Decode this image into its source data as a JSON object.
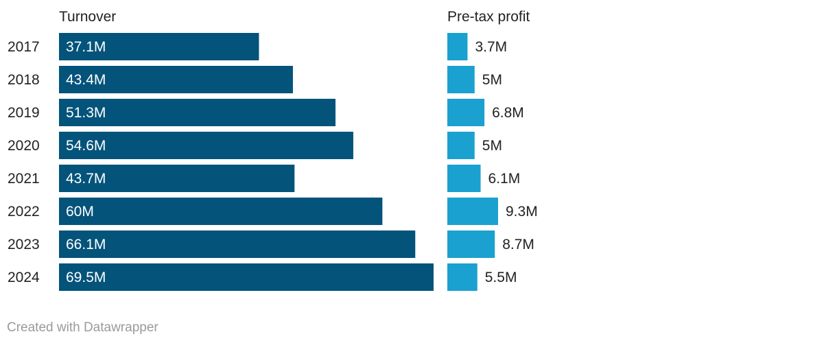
{
  "chart_data": {
    "type": "bar",
    "orientation": "horizontal",
    "categories": [
      "2017",
      "2018",
      "2019",
      "2020",
      "2021",
      "2022",
      "2023",
      "2024"
    ],
    "series": [
      {
        "name": "Turnover",
        "values": [
          37.1,
          43.4,
          51.3,
          54.6,
          43.7,
          60,
          66.1,
          69.5
        ],
        "labels": [
          "37.1M",
          "43.4M",
          "51.3M",
          "54.6M",
          "43.7M",
          "60M",
          "66.1M",
          "69.5M"
        ],
        "color": "#04537a",
        "label_position": "inside"
      },
      {
        "name": "Pre-tax profit",
        "values": [
          3.7,
          5,
          6.8,
          5,
          6.1,
          9.3,
          8.7,
          5.5
        ],
        "labels": [
          "3.7M",
          "5M",
          "6.8M",
          "5M",
          "6.1M",
          "9.3M",
          "8.7M",
          "5.5M"
        ],
        "color": "#1aa1cf",
        "label_position": "outside"
      }
    ],
    "title": "",
    "xlabel": "",
    "ylabel": "",
    "grid": false,
    "legend": "none"
  },
  "footer": {
    "credit": "Created with Datawrapper"
  }
}
